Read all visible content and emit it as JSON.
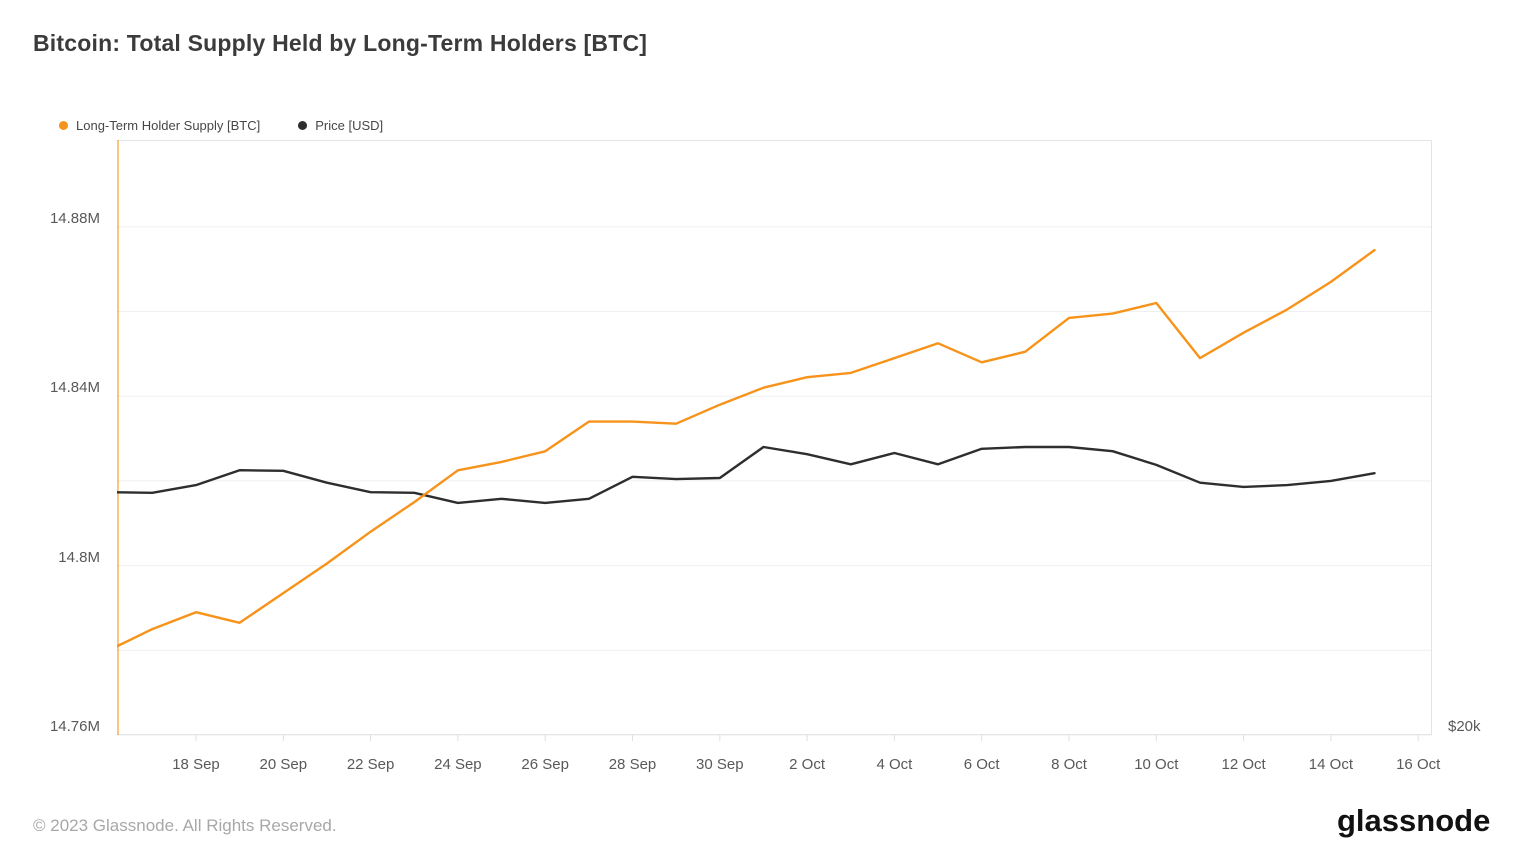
{
  "title": "Bitcoin: Total Supply Held by Long-Term Holders [BTC]",
  "footer": {
    "copyright": "© 2023 Glassnode. All Rights Reserved.",
    "logo_text": "glassnode"
  },
  "colors": {
    "supply_orange": "#f7931a",
    "price_black": "#2e2e2e",
    "gridline": "#efefef",
    "plot_border": "#e4e4e4",
    "left_axis_line": "rgba(247,147,26,0.55)",
    "tick_mark": "#e0e0e0",
    "axis_text": "#595959",
    "title_text": "#3b3b3b",
    "footer_text": "#a8a8a8"
  },
  "chart_data": {
    "type": "line",
    "title": "Bitcoin: Total Supply Held by Long-Term Holders [BTC]",
    "legend_position": "top-left",
    "grid": "horizontal-only",
    "x_dates": [
      "16 Sep",
      "17 Sep",
      "18 Sep",
      "19 Sep",
      "20 Sep",
      "21 Sep",
      "22 Sep",
      "23 Sep",
      "24 Sep",
      "25 Sep",
      "26 Sep",
      "27 Sep",
      "28 Sep",
      "29 Sep",
      "30 Sep",
      "1 Oct",
      "2 Oct",
      "3 Oct",
      "4 Oct",
      "5 Oct",
      "6 Oct",
      "7 Oct",
      "8 Oct",
      "9 Oct",
      "10 Oct",
      "11 Oct",
      "12 Oct",
      "13 Oct",
      "14 Oct",
      "15 Oct"
    ],
    "ylim": [
      14.76,
      14.9005
    ],
    "gridline_values": [
      14.76,
      14.78,
      14.8,
      14.82,
      14.84,
      14.86,
      14.88
    ],
    "y_ticks": [
      {
        "label": "14.88M",
        "value": 14.88
      },
      {
        "label": "14.84M",
        "value": 14.84
      },
      {
        "label": "14.8M",
        "value": 14.8
      },
      {
        "label": "14.76M",
        "value": 14.76
      }
    ],
    "x_ticks": [
      {
        "label": "18 Sep",
        "day": 2
      },
      {
        "label": "20 Sep",
        "day": 4
      },
      {
        "label": "22 Sep",
        "day": 6
      },
      {
        "label": "24 Sep",
        "day": 8
      },
      {
        "label": "26 Sep",
        "day": 10
      },
      {
        "label": "28 Sep",
        "day": 12
      },
      {
        "label": "30 Sep",
        "day": 14
      },
      {
        "label": "2 Oct",
        "day": 16
      },
      {
        "label": "4 Oct",
        "day": 18
      },
      {
        "label": "6 Oct",
        "day": 20
      },
      {
        "label": "8 Oct",
        "day": 22
      },
      {
        "label": "10 Oct",
        "day": 24
      },
      {
        "label": "12 Oct",
        "day": 26
      },
      {
        "label": "14 Oct",
        "day": 28
      },
      {
        "label": "16 Oct",
        "day": 30
      }
    ],
    "right_axis_label": "$20k",
    "series": [
      {
        "name": "Long-Term Holder Supply [BTC]",
        "color": "#f7931a",
        "unit": "BTC, millions",
        "values": [
          14.78,
          14.785,
          14.789,
          14.7865,
          14.7935,
          14.8005,
          14.808,
          14.815,
          14.8225,
          14.8245,
          14.827,
          14.834,
          14.834,
          14.8335,
          14.838,
          14.842,
          14.8445,
          14.8455,
          14.849,
          14.8525,
          14.848,
          14.8505,
          14.8585,
          14.8595,
          14.862,
          14.849,
          14.855,
          14.8605,
          14.867,
          14.8745
        ]
      },
      {
        "name": "Price [USD]",
        "color": "#2e2e2e",
        "axis_visible_tick": "$20k",
        "values_frac_of_plot_height": [
          0.408,
          0.407,
          0.42,
          0.445,
          0.444,
          0.424,
          0.408,
          0.407,
          0.39,
          0.397,
          0.39,
          0.397,
          0.434,
          0.43,
          0.432,
          0.484,
          0.472,
          0.455,
          0.474,
          0.455,
          0.481,
          0.484,
          0.484,
          0.477,
          0.454,
          0.424,
          0.417,
          0.42,
          0.427,
          0.44
        ]
      }
    ]
  }
}
